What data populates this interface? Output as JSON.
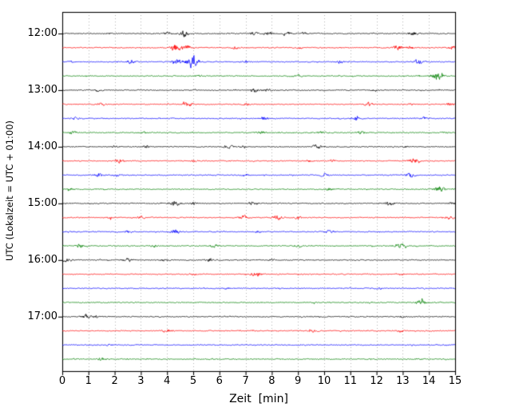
{
  "figure": {
    "xlabel": "Zeit  [min]",
    "ylabel": "UTC (Lokalzeit = UTC + 01:00)"
  },
  "chart_data": {
    "type": "line",
    "subtype": "helicorder-dayplot",
    "title": "",
    "xlabel": "Zeit  [min]",
    "ylabel": "UTC (Lokalzeit = UTC + 01:00)",
    "xlim": [
      0,
      15
    ],
    "xticks": [
      "0",
      "1",
      "2",
      "3",
      "4",
      "5",
      "6",
      "7",
      "8",
      "9",
      "10",
      "11",
      "12",
      "13",
      "14",
      "15"
    ],
    "ytick_hours": [
      "12:00",
      "13:00",
      "14:00",
      "15:00",
      "16:00",
      "17:00"
    ],
    "grid": "vertical-dotted",
    "grid_color": "#a8a8a8",
    "trace_interval_min": 15,
    "base_noise_amp": 0.8,
    "colors_cycle": [
      "#000000",
      "#ff0000",
      "#0000ff",
      "#008000"
    ],
    "traces": [
      {
        "start": "12:00",
        "color": "#000000",
        "bursts": [
          [
            4.0,
            2,
            0.1
          ],
          [
            4.65,
            5,
            0.12
          ],
          [
            7.3,
            2.5,
            0.1
          ],
          [
            7.9,
            3,
            0.1
          ],
          [
            8.6,
            2.5,
            0.1
          ],
          [
            9.2,
            2,
            0.1
          ],
          [
            13.4,
            3,
            0.12
          ]
        ]
      },
      {
        "start": "12:15",
        "color": "#ff0000",
        "bursts": [
          [
            4.35,
            6,
            0.13
          ],
          [
            4.75,
            4,
            0.1
          ],
          [
            6.6,
            2,
            0.1
          ],
          [
            9.1,
            1.5,
            0.08
          ],
          [
            12.8,
            4,
            0.13
          ],
          [
            13.3,
            2,
            0.1
          ],
          [
            14.9,
            3,
            0.1
          ]
        ]
      },
      {
        "start": "12:30",
        "color": "#0000ff",
        "bursts": [
          [
            0.3,
            1.5,
            0.08
          ],
          [
            2.6,
            3,
            0.12
          ],
          [
            4.4,
            4,
            0.12
          ],
          [
            4.95,
            9,
            0.15
          ],
          [
            7.0,
            2,
            0.1
          ],
          [
            10.6,
            2,
            0.1
          ],
          [
            13.6,
            4,
            0.13
          ]
        ]
      },
      {
        "start": "12:45",
        "color": "#008000",
        "bursts": [
          [
            5.2,
            1.5,
            0.08
          ],
          [
            9.0,
            1.5,
            0.08
          ],
          [
            14.3,
            7,
            0.14
          ]
        ]
      },
      {
        "start": "13:00",
        "color": "#000000",
        "bursts": [
          [
            1.4,
            2,
            0.1
          ],
          [
            7.35,
            3.5,
            0.12
          ],
          [
            7.8,
            2,
            0.1
          ],
          [
            11.9,
            2,
            0.1
          ]
        ]
      },
      {
        "start": "13:15",
        "color": "#ff0000",
        "bursts": [
          [
            1.5,
            2,
            0.1
          ],
          [
            4.8,
            4,
            0.12
          ],
          [
            7.0,
            2,
            0.1
          ],
          [
            11.7,
            3,
            0.12
          ],
          [
            13.3,
            1.5,
            0.08
          ],
          [
            14.8,
            2.5,
            0.1
          ]
        ]
      },
      {
        "start": "13:30",
        "color": "#0000ff",
        "bursts": [
          [
            0.5,
            2,
            0.1
          ],
          [
            7.7,
            3,
            0.12
          ],
          [
            11.2,
            3,
            0.12
          ],
          [
            13.8,
            2,
            0.1
          ]
        ]
      },
      {
        "start": "13:45",
        "color": "#008000",
        "bursts": [
          [
            0.4,
            2,
            0.1
          ],
          [
            3.1,
            1.5,
            0.08
          ],
          [
            7.6,
            3,
            0.12
          ],
          [
            9.9,
            2,
            0.1
          ],
          [
            11.4,
            2.5,
            0.1
          ],
          [
            14.6,
            1.5,
            0.08
          ]
        ]
      },
      {
        "start": "14:00",
        "color": "#000000",
        "bursts": [
          [
            2.0,
            2,
            0.1
          ],
          [
            3.2,
            2,
            0.1
          ],
          [
            6.3,
            3,
            0.12
          ],
          [
            6.9,
            2,
            0.1
          ],
          [
            9.7,
            3.5,
            0.12
          ],
          [
            13.1,
            1.5,
            0.08
          ]
        ]
      },
      {
        "start": "14:15",
        "color": "#ff0000",
        "bursts": [
          [
            2.2,
            3.5,
            0.12
          ],
          [
            5.0,
            1.5,
            0.08
          ],
          [
            9.4,
            1.5,
            0.08
          ],
          [
            10.3,
            1.5,
            0.08
          ],
          [
            13.4,
            4,
            0.13
          ]
        ]
      },
      {
        "start": "14:30",
        "color": "#0000ff",
        "bursts": [
          [
            1.4,
            3,
            0.12
          ],
          [
            2.1,
            2,
            0.1
          ],
          [
            7.0,
            2,
            0.1
          ],
          [
            10.0,
            2,
            0.1
          ],
          [
            13.3,
            3,
            0.12
          ]
        ]
      },
      {
        "start": "14:45",
        "color": "#008000",
        "bursts": [
          [
            0.3,
            1.5,
            0.08
          ],
          [
            10.2,
            2,
            0.1
          ],
          [
            14.4,
            5,
            0.13
          ]
        ]
      },
      {
        "start": "15:00",
        "color": "#000000",
        "bursts": [
          [
            4.3,
            4,
            0.13
          ],
          [
            5.0,
            2,
            0.1
          ],
          [
            7.3,
            3,
            0.12
          ],
          [
            12.5,
            3.5,
            0.12
          ],
          [
            14.9,
            2,
            0.1
          ]
        ]
      },
      {
        "start": "15:15",
        "color": "#ff0000",
        "bursts": [
          [
            1.8,
            1.5,
            0.08
          ],
          [
            3.0,
            2,
            0.1
          ],
          [
            6.9,
            3,
            0.12
          ],
          [
            8.2,
            3.5,
            0.12
          ],
          [
            9.0,
            2,
            0.1
          ],
          [
            14.8,
            3,
            0.1
          ]
        ]
      },
      {
        "start": "15:30",
        "color": "#0000ff",
        "bursts": [
          [
            2.5,
            2,
            0.1
          ],
          [
            4.3,
            3.5,
            0.12
          ],
          [
            7.5,
            1.5,
            0.08
          ],
          [
            10.2,
            3,
            0.12
          ]
        ]
      },
      {
        "start": "15:45",
        "color": "#008000",
        "bursts": [
          [
            0.7,
            3.5,
            0.12
          ],
          [
            3.5,
            1.5,
            0.08
          ],
          [
            5.8,
            2.5,
            0.1
          ],
          [
            9.0,
            2,
            0.1
          ],
          [
            12.9,
            4,
            0.13
          ]
        ]
      },
      {
        "start": "16:00",
        "color": "#000000",
        "bursts": [
          [
            0.15,
            3.5,
            0.12
          ],
          [
            2.5,
            3.5,
            0.12
          ],
          [
            3.9,
            2,
            0.1
          ],
          [
            5.6,
            2.5,
            0.1
          ],
          [
            8.0,
            1.5,
            0.08
          ]
        ]
      },
      {
        "start": "16:15",
        "color": "#ff0000",
        "bursts": [
          [
            5.0,
            1.5,
            0.08
          ],
          [
            7.4,
            3.5,
            0.12
          ],
          [
            12.9,
            2,
            0.1
          ]
        ]
      },
      {
        "start": "16:30",
        "color": "#0000ff",
        "bursts": [
          [
            6.3,
            1.2,
            0.08
          ],
          [
            12.1,
            1.5,
            0.08
          ]
        ]
      },
      {
        "start": "16:45",
        "color": "#008000",
        "bursts": [
          [
            9.6,
            1.5,
            0.08
          ],
          [
            13.7,
            3.5,
            0.13
          ]
        ]
      },
      {
        "start": "17:00",
        "color": "#000000",
        "bursts": [
          [
            0.9,
            3,
            0.12
          ],
          [
            1.3,
            2,
            0.1
          ],
          [
            13.0,
            1.5,
            0.08
          ]
        ]
      },
      {
        "start": "17:15",
        "color": "#ff0000",
        "bursts": [
          [
            4.0,
            3,
            0.12
          ],
          [
            9.6,
            2,
            0.1
          ],
          [
            12.9,
            2,
            0.1
          ]
        ]
      },
      {
        "start": "17:30",
        "color": "#0000ff",
        "bursts": [
          [
            1.8,
            1.2,
            0.08
          ]
        ]
      },
      {
        "start": "17:45",
        "color": "#008000",
        "bursts": [
          [
            1.5,
            2,
            0.1
          ]
        ]
      }
    ]
  }
}
